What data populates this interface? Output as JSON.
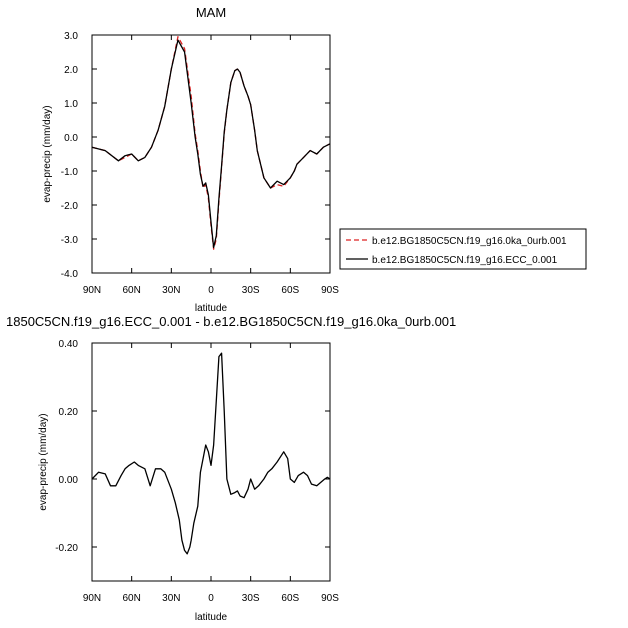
{
  "chart_data": [
    {
      "type": "line",
      "title": "MAM",
      "xlabel": "latitude",
      "ylabel": "evap-precip (mm/day)",
      "xlim": [
        90,
        -90
      ],
      "ylim": [
        -4.0,
        3.0
      ],
      "xticks": [
        90,
        60,
        30,
        0,
        -30,
        -60,
        -90
      ],
      "xtick_labels": [
        "90N",
        "60N",
        "30N",
        "0",
        "30S",
        "60S",
        "90S"
      ],
      "yticks": [
        -4.0,
        -3.0,
        -2.0,
        -1.0,
        0.0,
        1.0,
        2.0,
        3.0
      ],
      "ytick_labels": [
        "-4.0",
        "-3.0",
        "-2.0",
        "-1.0",
        "0.0",
        "1.0",
        "2.0",
        "3.0"
      ],
      "grid": false,
      "legend": "right",
      "series": [
        {
          "name": "b.e12.BG1850C5CN.f19_g16.0ka_0urb.001",
          "color": "#dd2222",
          "dash": "dashed",
          "x": [
            90,
            80,
            70,
            65,
            60,
            55,
            50,
            45,
            40,
            35,
            30,
            25,
            20,
            15,
            12,
            10,
            8,
            6,
            4,
            2,
            0,
            -2,
            -4,
            -6,
            -8,
            -10,
            -12,
            -15,
            -18,
            -20,
            -22,
            -25,
            -28,
            -30,
            -33,
            -35,
            -40,
            -45,
            -50,
            -55,
            -60,
            -63,
            -65,
            -70,
            -75,
            -80,
            -85,
            -90
          ],
          "y": [
            -0.3,
            -0.4,
            -0.7,
            -0.6,
            -0.5,
            -0.7,
            -0.6,
            -0.3,
            0.2,
            0.9,
            2.0,
            2.95,
            2.6,
            1.2,
            0.1,
            -0.4,
            -1.0,
            -1.5,
            -1.4,
            -1.8,
            -2.6,
            -3.3,
            -3.0,
            -1.9,
            -0.9,
            0.1,
            0.8,
            1.6,
            1.95,
            2.0,
            1.9,
            1.5,
            1.2,
            0.95,
            0.2,
            -0.4,
            -1.2,
            -1.5,
            -1.4,
            -1.45,
            -1.2,
            -1.0,
            -0.8,
            -0.6,
            -0.4,
            -0.5,
            -0.3,
            -0.2
          ]
        },
        {
          "name": "b.e12.BG1850C5CN.f19_g16.ECC_0.001",
          "color": "#000000",
          "dash": "solid",
          "x": [
            90,
            80,
            70,
            65,
            60,
            55,
            50,
            45,
            40,
            35,
            30,
            25,
            20,
            15,
            12,
            10,
            8,
            6,
            4,
            2,
            0,
            -2,
            -4,
            -6,
            -8,
            -10,
            -12,
            -15,
            -18,
            -20,
            -22,
            -25,
            -28,
            -30,
            -33,
            -35,
            -40,
            -45,
            -50,
            -55,
            -60,
            -63,
            -65,
            -70,
            -75,
            -80,
            -85,
            -90
          ],
          "y": [
            -0.3,
            -0.4,
            -0.7,
            -0.55,
            -0.5,
            -0.7,
            -0.6,
            -0.3,
            0.2,
            0.9,
            2.0,
            2.85,
            2.5,
            1.0,
            0.0,
            -0.5,
            -1.1,
            -1.45,
            -1.35,
            -1.7,
            -2.5,
            -3.25,
            -2.9,
            -1.8,
            -0.85,
            0.15,
            0.8,
            1.6,
            1.95,
            2.0,
            1.9,
            1.5,
            1.2,
            0.95,
            0.2,
            -0.4,
            -1.2,
            -1.5,
            -1.3,
            -1.4,
            -1.2,
            -1.0,
            -0.8,
            -0.6,
            -0.4,
            -0.5,
            -0.3,
            -0.2
          ]
        }
      ]
    },
    {
      "type": "line",
      "title": "1850C5CN.f19_g16.ECC_0.001 - b.e12.BG1850C5CN.f19_g16.0ka_0urb.001",
      "xlabel": "latitude",
      "ylabel": "evap-precip (mm/day)",
      "xlim": [
        90,
        -90
      ],
      "ylim": [
        -0.3,
        0.4
      ],
      "xticks": [
        90,
        60,
        30,
        0,
        -30,
        -60,
        -90
      ],
      "xtick_labels": [
        "90N",
        "60N",
        "30N",
        "0",
        "30S",
        "60S",
        "90S"
      ],
      "yticks": [
        -0.2,
        0.0,
        0.2,
        0.4
      ],
      "ytick_labels": [
        "-0.20",
        "0.00",
        "0.20",
        "0.40"
      ],
      "grid": false,
      "series": [
        {
          "color": "#000000",
          "dash": "solid",
          "x": [
            90,
            85,
            80,
            76,
            72,
            68,
            65,
            62,
            58,
            55,
            50,
            46,
            42,
            38,
            35,
            30,
            27,
            24,
            22,
            20,
            18,
            16,
            15,
            13,
            10,
            8,
            6,
            4,
            2,
            0,
            -2,
            -4,
            -6,
            -8,
            -10,
            -12,
            -15,
            -18,
            -20,
            -22,
            -25,
            -28,
            -30,
            -33,
            -36,
            -40,
            -43,
            -46,
            -50,
            -55,
            -58,
            -60,
            -63,
            -66,
            -70,
            -73,
            -76,
            -80,
            -83,
            -86,
            -88,
            -90
          ],
          "y": [
            0.0,
            0.02,
            0.015,
            -0.02,
            -0.02,
            0.01,
            0.03,
            0.04,
            0.05,
            0.04,
            0.03,
            -0.02,
            0.03,
            0.03,
            0.02,
            -0.03,
            -0.07,
            -0.12,
            -0.18,
            -0.21,
            -0.22,
            -0.2,
            -0.18,
            -0.13,
            -0.08,
            0.02,
            0.06,
            0.1,
            0.08,
            0.04,
            0.1,
            0.23,
            0.36,
            0.37,
            0.2,
            0.0,
            -0.045,
            -0.04,
            -0.035,
            -0.05,
            -0.055,
            -0.03,
            0.0,
            -0.03,
            -0.02,
            0.0,
            0.02,
            0.03,
            0.05,
            0.08,
            0.06,
            0.0,
            -0.01,
            0.01,
            0.02,
            0.01,
            -0.015,
            -0.02,
            -0.01,
            0.0,
            0.005,
            0.0
          ]
        }
      ]
    }
  ]
}
